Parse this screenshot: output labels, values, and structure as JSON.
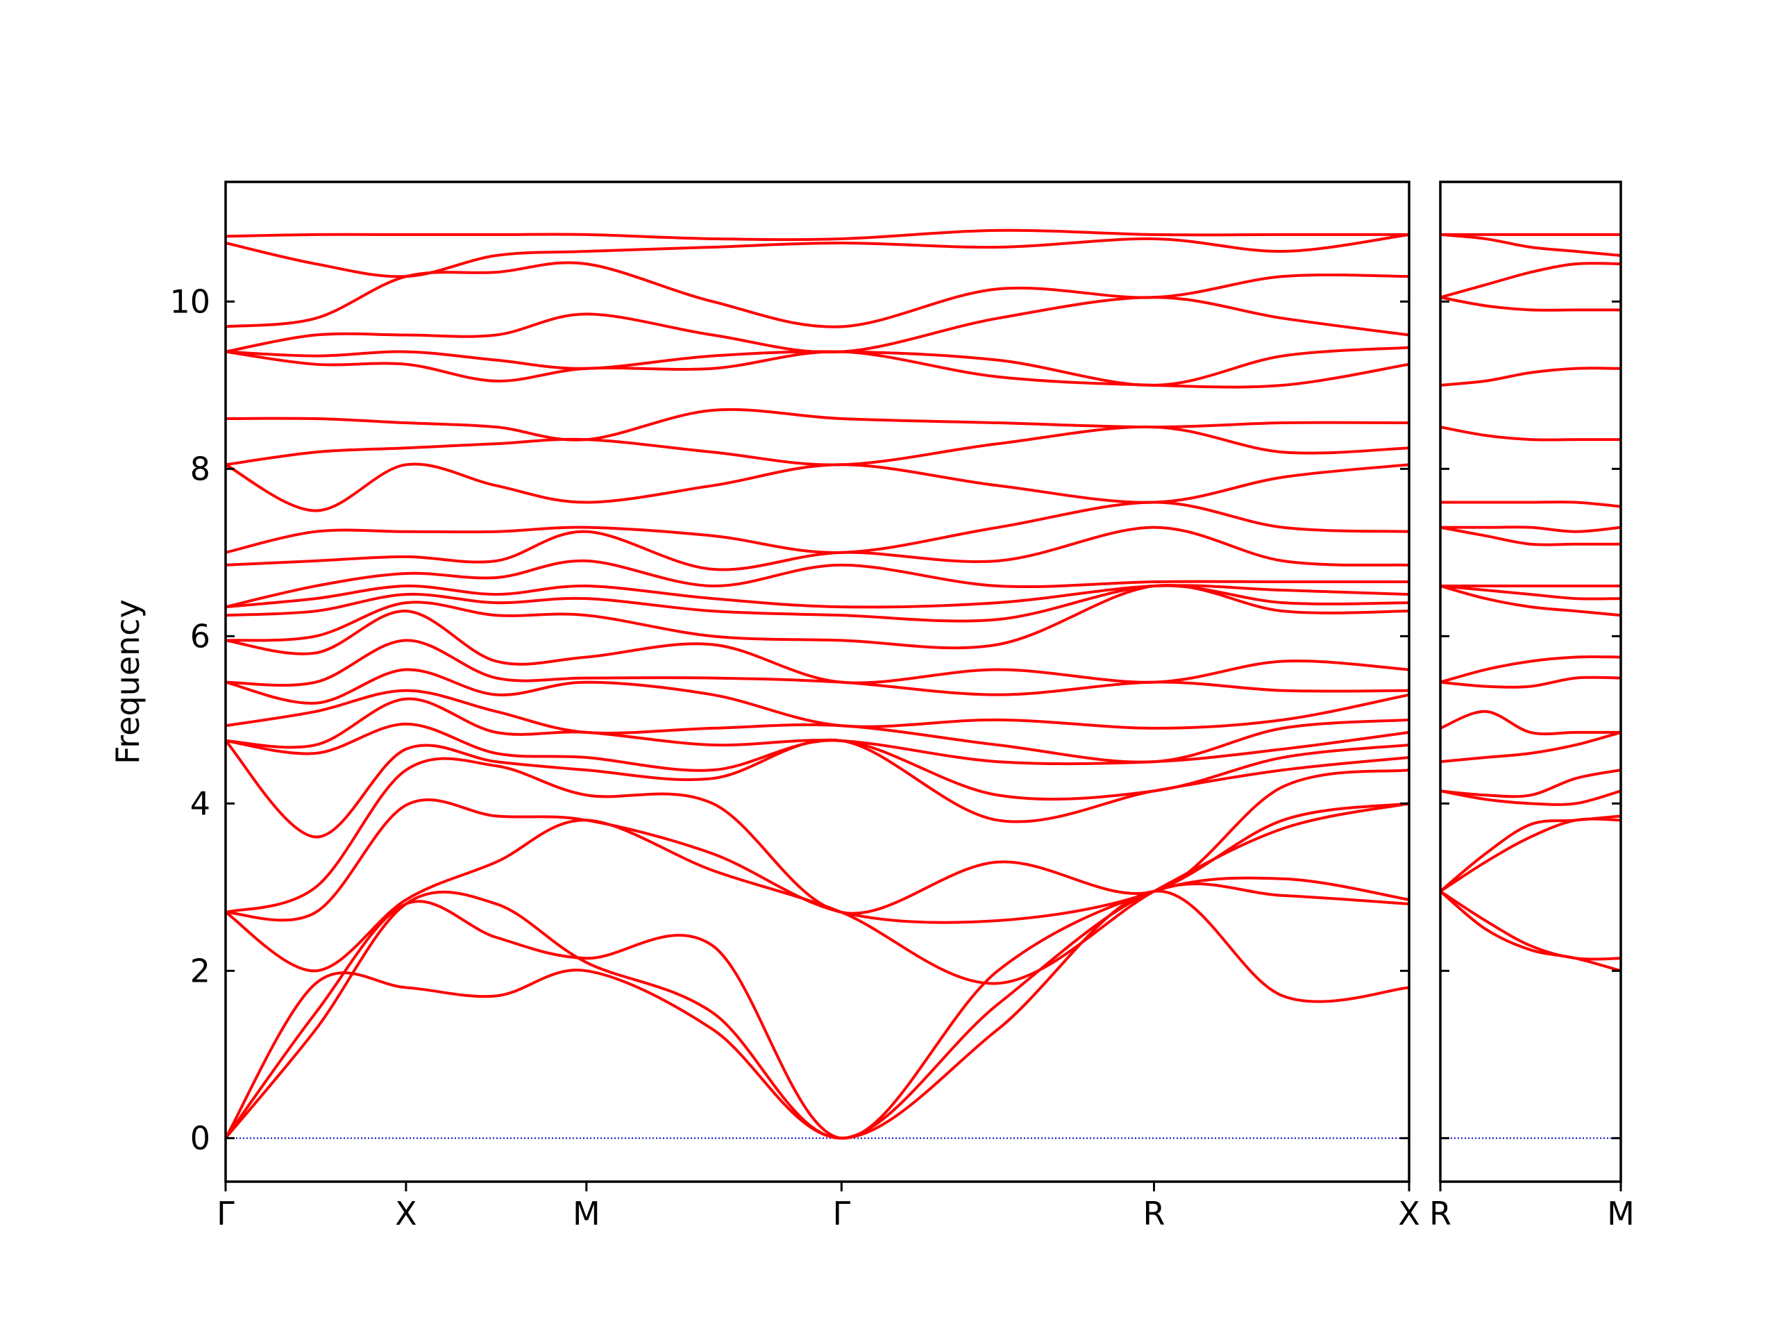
{
  "chart_data": [
    {
      "type": "line",
      "ylabel": "Frequency",
      "line_color": "#ff0000",
      "xlim": [
        0,
        3.28
      ],
      "ylim": [
        -0.52,
        11.43
      ],
      "xticks": [
        {
          "value": 0,
          "label": "Γ"
        },
        {
          "value": 0.5,
          "label": "X"
        },
        {
          "value": 1.0,
          "label": "M"
        },
        {
          "value": 1.707,
          "label": "Γ"
        },
        {
          "value": 2.573,
          "label": "R"
        },
        {
          "value": 3.28,
          "label": "X"
        }
      ],
      "yticks": [
        0,
        2,
        4,
        6,
        8,
        10
      ],
      "ytick_labels": true,
      "hline": {
        "value": 0,
        "color": "#0000cc"
      },
      "x": [
        0,
        0.25,
        0.5,
        0.75,
        1.0,
        1.35,
        1.707,
        2.14,
        2.573,
        2.93,
        3.28
      ],
      "series": [
        {
          "values": [
            0,
            1.85,
            1.8,
            1.7,
            2.0,
            1.3,
            0,
            1.3,
            2.95,
            1.7,
            1.8
          ]
        },
        {
          "values": [
            0,
            1.3,
            2.8,
            2.8,
            2.1,
            1.5,
            0,
            1.6,
            2.95,
            2.9,
            2.8
          ]
        },
        {
          "values": [
            0,
            1.5,
            2.8,
            2.4,
            2.15,
            2.3,
            0,
            2.0,
            2.95,
            3.1,
            2.85
          ]
        },
        {
          "values": [
            2.7,
            2.0,
            2.85,
            3.3,
            3.8,
            3.2,
            2.7,
            1.85,
            2.95,
            3.7,
            4.0
          ]
        },
        {
          "values": [
            2.7,
            2.7,
            3.98,
            3.85,
            3.8,
            3.4,
            2.7,
            2.6,
            2.95,
            3.8,
            4.0
          ]
        },
        {
          "values": [
            2.7,
            3.0,
            4.4,
            4.45,
            4.1,
            4.0,
            2.7,
            3.3,
            2.95,
            4.2,
            4.4
          ]
        },
        {
          "values": [
            4.75,
            3.6,
            4.65,
            4.5,
            4.4,
            4.3,
            4.75,
            3.8,
            4.15,
            4.4,
            4.55
          ]
        },
        {
          "values": [
            4.75,
            4.6,
            4.95,
            4.6,
            4.55,
            4.4,
            4.75,
            4.1,
            4.15,
            4.55,
            4.7
          ]
        },
        {
          "values": [
            4.75,
            4.7,
            5.25,
            4.85,
            4.85,
            4.7,
            4.75,
            4.5,
            4.5,
            4.65,
            4.85
          ]
        },
        {
          "values": [
            4.93,
            5.1,
            5.35,
            5.1,
            4.85,
            4.9,
            4.93,
            4.7,
            4.5,
            4.9,
            5.0
          ]
        },
        {
          "values": [
            5.45,
            5.2,
            5.6,
            5.3,
            5.45,
            5.3,
            4.93,
            5.0,
            4.9,
            5.0,
            5.3
          ]
        },
        {
          "values": [
            5.45,
            5.45,
            5.95,
            5.5,
            5.5,
            5.5,
            5.45,
            5.3,
            5.45,
            5.35,
            5.35
          ]
        },
        {
          "values": [
            5.95,
            5.8,
            6.3,
            5.7,
            5.75,
            5.9,
            5.45,
            5.6,
            5.45,
            5.7,
            5.6
          ]
        },
        {
          "values": [
            5.95,
            6.0,
            6.4,
            6.25,
            6.25,
            6.0,
            5.95,
            5.9,
            6.6,
            6.3,
            6.3
          ]
        },
        {
          "values": [
            6.25,
            6.3,
            6.5,
            6.4,
            6.45,
            6.3,
            6.25,
            6.2,
            6.6,
            6.4,
            6.4
          ]
        },
        {
          "values": [
            6.35,
            6.45,
            6.6,
            6.5,
            6.6,
            6.45,
            6.35,
            6.4,
            6.6,
            6.55,
            6.5
          ]
        },
        {
          "values": [
            6.35,
            6.6,
            6.75,
            6.7,
            6.9,
            6.6,
            6.85,
            6.6,
            6.65,
            6.65,
            6.65
          ]
        },
        {
          "values": [
            6.85,
            6.9,
            6.95,
            6.9,
            7.25,
            6.8,
            7.0,
            6.9,
            7.3,
            6.9,
            6.85
          ]
        },
        {
          "values": [
            7.0,
            7.25,
            7.25,
            7.25,
            7.3,
            7.2,
            7.0,
            7.3,
            7.6,
            7.3,
            7.25
          ]
        },
        {
          "values": [
            8.05,
            7.5,
            8.05,
            7.8,
            7.6,
            7.8,
            8.05,
            7.8,
            7.6,
            7.9,
            8.05
          ]
        },
        {
          "values": [
            8.05,
            8.2,
            8.25,
            8.3,
            8.35,
            8.2,
            8.05,
            8.3,
            8.5,
            8.2,
            8.25
          ]
        },
        {
          "values": [
            8.6,
            8.6,
            8.55,
            8.5,
            8.35,
            8.7,
            8.6,
            8.55,
            8.5,
            8.55,
            8.55
          ]
        },
        {
          "values": [
            9.4,
            9.25,
            9.25,
            9.05,
            9.2,
            9.2,
            9.4,
            9.1,
            9.0,
            9.0,
            9.25
          ]
        },
        {
          "values": [
            9.4,
            9.35,
            9.4,
            9.3,
            9.2,
            9.35,
            9.4,
            9.3,
            9.0,
            9.35,
            9.45
          ]
        },
        {
          "values": [
            9.4,
            9.6,
            9.6,
            9.6,
            9.85,
            9.6,
            9.4,
            9.8,
            10.05,
            9.8,
            9.6
          ]
        },
        {
          "values": [
            9.7,
            9.8,
            10.3,
            10.35,
            10.45,
            10.0,
            9.7,
            10.15,
            10.05,
            10.3,
            10.3
          ]
        },
        {
          "values": [
            10.7,
            10.45,
            10.3,
            10.55,
            10.6,
            10.65,
            10.7,
            10.65,
            10.75,
            10.6,
            10.8
          ]
        },
        {
          "values": [
            10.78,
            10.8,
            10.8,
            10.8,
            10.8,
            10.75,
            10.75,
            10.85,
            10.8,
            10.8,
            10.8
          ]
        }
      ]
    },
    {
      "type": "line",
      "line_color": "#ff0000",
      "xlim": [
        0,
        0.5
      ],
      "ylim": [
        -0.52,
        11.43
      ],
      "xticks": [
        {
          "value": 0,
          "label": "R"
        },
        {
          "value": 0.5,
          "label": "M"
        }
      ],
      "yticks": [
        0,
        2,
        4,
        6,
        8,
        10
      ],
      "ytick_labels": false,
      "hline": {
        "value": 0,
        "color": "#0000cc"
      },
      "x": [
        0,
        0.125,
        0.25,
        0.375,
        0.5
      ],
      "series": [
        {
          "values": [
            2.95,
            2.5,
            2.25,
            2.15,
            2.0
          ]
        },
        {
          "values": [
            2.95,
            2.6,
            2.3,
            2.15,
            2.15
          ]
        },
        {
          "values": [
            2.95,
            3.3,
            3.6,
            3.8,
            3.8
          ]
        },
        {
          "values": [
            2.95,
            3.4,
            3.75,
            3.8,
            3.85
          ]
        },
        {
          "values": [
            4.15,
            4.05,
            4.0,
            4.0,
            4.15
          ]
        },
        {
          "values": [
            4.15,
            4.1,
            4.1,
            4.3,
            4.4
          ]
        },
        {
          "values": [
            4.5,
            4.55,
            4.6,
            4.7,
            4.85
          ]
        },
        {
          "values": [
            4.9,
            5.1,
            4.85,
            4.85,
            4.85
          ]
        },
        {
          "values": [
            5.45,
            5.4,
            5.4,
            5.5,
            5.5
          ]
        },
        {
          "values": [
            5.45,
            5.6,
            5.7,
            5.75,
            5.75
          ]
        },
        {
          "values": [
            6.6,
            6.45,
            6.35,
            6.3,
            6.25
          ]
        },
        {
          "values": [
            6.6,
            6.55,
            6.5,
            6.45,
            6.45
          ]
        },
        {
          "values": [
            6.6,
            6.6,
            6.6,
            6.6,
            6.6
          ]
        },
        {
          "values": [
            7.3,
            7.2,
            7.1,
            7.1,
            7.1
          ]
        },
        {
          "values": [
            7.3,
            7.3,
            7.3,
            7.25,
            7.3
          ]
        },
        {
          "values": [
            7.6,
            7.6,
            7.6,
            7.6,
            7.55
          ]
        },
        {
          "values": [
            8.5,
            8.4,
            8.35,
            8.35,
            8.35
          ]
        },
        {
          "values": [
            9.0,
            9.05,
            9.15,
            9.2,
            9.2
          ]
        },
        {
          "values": [
            10.05,
            9.95,
            9.9,
            9.9,
            9.9
          ]
        },
        {
          "values": [
            10.05,
            10.2,
            10.35,
            10.45,
            10.45
          ]
        },
        {
          "values": [
            10.8,
            10.8,
            10.8,
            10.8,
            10.8
          ]
        },
        {
          "values": [
            10.8,
            10.75,
            10.65,
            10.6,
            10.55
          ]
        }
      ]
    }
  ]
}
